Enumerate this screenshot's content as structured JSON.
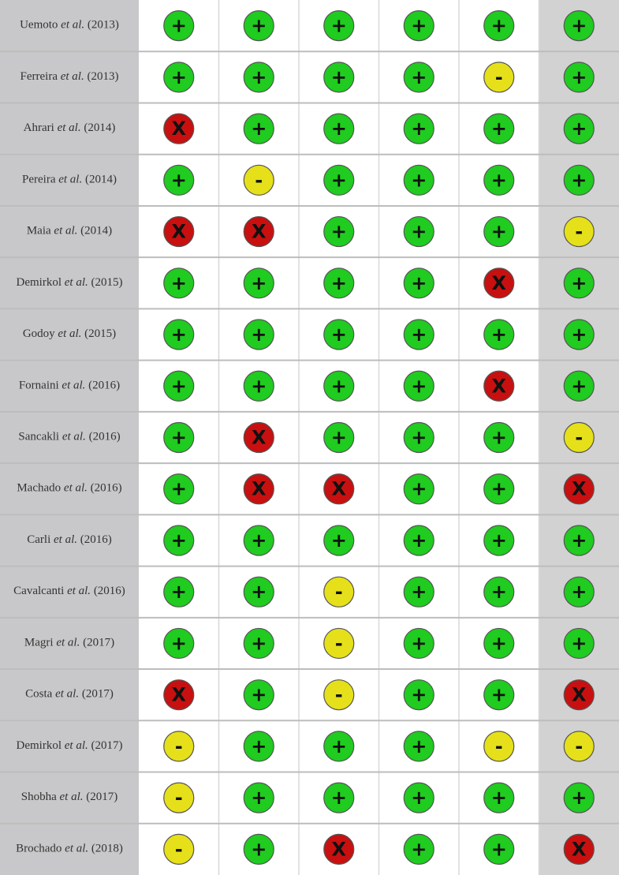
{
  "table": {
    "symbol_colors": {
      "+": "#1fcc1f",
      "-": "#e6e01a",
      "X": "#c81010"
    },
    "rows": [
      {
        "author": "Uemoto",
        "etal": "et al.",
        "year": "(2013)",
        "cells": [
          "+",
          "+",
          "+",
          "+",
          "+",
          "+"
        ]
      },
      {
        "author": "Ferreira",
        "etal": "et al.",
        "year": "(2013)",
        "cells": [
          "+",
          "+",
          "+",
          "+",
          "-",
          "+"
        ]
      },
      {
        "author": "Ahrari",
        "etal": "et al.",
        "year": "(2014)",
        "cells": [
          "X",
          "+",
          "+",
          "+",
          "+",
          "+"
        ]
      },
      {
        "author": "Pereira",
        "etal": "et al.",
        "year": "(2014)",
        "cells": [
          "+",
          "-",
          "+",
          "+",
          "+",
          "+"
        ]
      },
      {
        "author": "Maia",
        "etal": "et al.",
        "year": "(2014)",
        "cells": [
          "X",
          "X",
          "+",
          "+",
          "+",
          "-"
        ]
      },
      {
        "author": "Demirkol",
        "etal": "et al.",
        "year": "(2015)",
        "cells": [
          "+",
          "+",
          "+",
          "+",
          "X",
          "+"
        ]
      },
      {
        "author": "Godoy",
        "etal": "et al.",
        "year": "(2015)",
        "cells": [
          "+",
          "+",
          "+",
          "+",
          "+",
          "+"
        ]
      },
      {
        "author": "Fornaini",
        "etal": "et al.",
        "year": "(2016)",
        "cells": [
          "+",
          "+",
          "+",
          "+",
          "X",
          "+"
        ]
      },
      {
        "author": "Sancakli",
        "etal": "et al.",
        "year": "(2016)",
        "cells": [
          "+",
          "X",
          "+",
          "+",
          "+",
          "-"
        ]
      },
      {
        "author": "Machado",
        "etal": "et al.",
        "year": "(2016)",
        "cells": [
          "+",
          "X",
          "X",
          "+",
          "+",
          "X"
        ]
      },
      {
        "author": "Carli",
        "etal": "et al.",
        "year": "(2016)",
        "cells": [
          "+",
          "+",
          "+",
          "+",
          "+",
          "+"
        ]
      },
      {
        "author": "Cavalcanti",
        "etal": "et al.",
        "year": "(2016)",
        "cells": [
          "+",
          "+",
          "-",
          "+",
          "+",
          "+"
        ]
      },
      {
        "author": "Magri",
        "etal": "et al.",
        "year": "(2017)",
        "cells": [
          "+",
          "+",
          "-",
          "+",
          "+",
          "+"
        ]
      },
      {
        "author": "Costa",
        "etal": "et al.",
        "year": "(2017)",
        "cells": [
          "X",
          "+",
          "-",
          "+",
          "+",
          "X"
        ]
      },
      {
        "author": "Demirkol",
        "etal": "et al.",
        "year": "(2017)",
        "cells": [
          "-",
          "+",
          "+",
          "+",
          "-",
          "-"
        ]
      },
      {
        "author": "Shobha",
        "etal": "et al.",
        "year": "(2017)",
        "cells": [
          "-",
          "+",
          "+",
          "+",
          "+",
          "+"
        ]
      },
      {
        "author": "Brochado",
        "etal": "et al.",
        "year": "(2018)",
        "cells": [
          "-",
          "+",
          "X",
          "+",
          "+",
          "X"
        ]
      }
    ]
  }
}
